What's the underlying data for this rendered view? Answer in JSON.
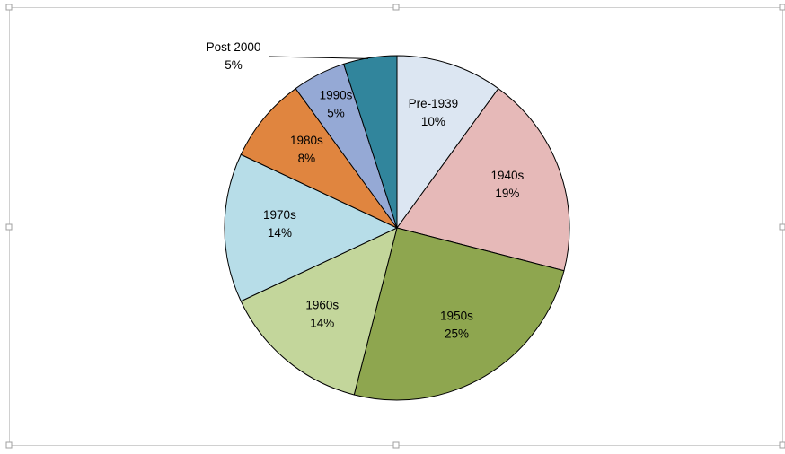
{
  "chart_data": {
    "type": "pie",
    "categories": [
      "Pre-1939",
      "1940s",
      "1950s",
      "1960s",
      "1970s",
      "1980s",
      "1990s",
      "Post 2000"
    ],
    "values": [
      10,
      19,
      25,
      14,
      14,
      8,
      5,
      5
    ],
    "value_labels": [
      "10%",
      "19%",
      "25%",
      "14%",
      "14%",
      "8%",
      "5%",
      "5%"
    ],
    "colors": [
      "#dce6f2",
      "#e6b9b8",
      "#8ea64f",
      "#c3d69b",
      "#b7dde8",
      "#e0853f",
      "#95a9d5",
      "#31859c"
    ]
  }
}
